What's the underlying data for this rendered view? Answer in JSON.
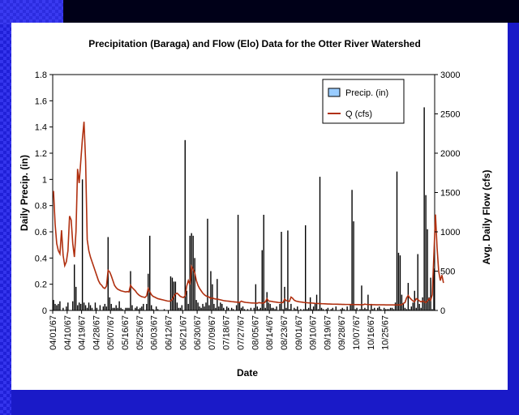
{
  "chart_data": {
    "type": "bar+line",
    "title": "Precipitation (Baraga) and Flow (Elo) Data for the Otter River Watershed",
    "xlabel": "Date",
    "ylabel_left": "Daily Precip. (in)",
    "ylabel_right": "Avg. Daily Flow (cfs)",
    "ylim_left": [
      0,
      1.8
    ],
    "ylim_right": [
      0,
      3000
    ],
    "yticks_left": [
      "0",
      "0.2",
      "0.4",
      "0.6",
      "0.8",
      "1",
      "1.2",
      "1.4",
      "1.6",
      "1.8"
    ],
    "yticks_right": [
      "0",
      "500",
      "1000",
      "1500",
      "2000",
      "2500",
      "3000"
    ],
    "x_tick_labels": [
      "04/01/67",
      "04/10/67",
      "04/19/67",
      "04/28/67",
      "05/07/67",
      "05/16/67",
      "05/25/67",
      "06/03/67",
      "06/12/67",
      "06/21/67",
      "06/30/67",
      "07/09/67",
      "07/18/67",
      "07/27/67",
      "08/05/67",
      "08/14/67",
      "08/23/67",
      "09/01/67",
      "09/10/67",
      "09/19/67",
      "09/28/67",
      "10/07/67",
      "10/16/67",
      "10/25/67"
    ],
    "legend_position": "top-right",
    "series": [
      {
        "name": "Precip. (in)",
        "kind": "bar",
        "axis": "left",
        "color": "#000000",
        "legend_color": "#99ccff",
        "values": [
          0.08,
          0.05,
          0.04,
          0.05,
          0.07,
          0,
          0.02,
          0,
          0.03,
          0.06,
          0,
          0,
          0.07,
          0.35,
          0.18,
          0.04,
          0.06,
          0.05,
          1.0,
          0.06,
          0.04,
          0.02,
          0.06,
          0.04,
          0.02,
          0,
          0.06,
          0.02,
          0,
          0.04,
          0,
          0.03,
          0.05,
          0.03,
          0.56,
          0.1,
          0.05,
          0.02,
          0.02,
          0.04,
          0.02,
          0.07,
          0.02,
          0.01,
          0,
          0.02,
          0.02,
          0.02,
          0.3,
          0.04,
          0,
          0.02,
          0.03,
          0.01,
          0.02,
          0.03,
          0.05,
          0,
          0.05,
          0.28,
          0.57,
          0.04,
          0.01,
          0,
          0.03,
          0.01,
          0,
          0,
          0,
          0.01,
          0,
          0,
          0,
          0.26,
          0.25,
          0.22,
          0.22,
          0.06,
          0.02,
          0.02,
          0.04,
          0,
          1.3,
          0.15,
          0.05,
          0.57,
          0.59,
          0.57,
          0.4,
          0.08,
          0.06,
          0.03,
          0.02,
          0.05,
          0.03,
          0.06,
          0.7,
          0.04,
          0.3,
          0.2,
          0.05,
          0.02,
          0.24,
          0.03,
          0.06,
          0.05,
          0.02,
          0,
          0.03,
          0.02,
          0,
          0.02,
          0.01,
          0,
          0.04,
          0.73,
          0.06,
          0.02,
          0.03,
          0.01,
          0,
          0.01,
          0,
          0.02,
          0,
          0.02,
          0.2,
          0.03,
          0.01,
          0.02,
          0.46,
          0.73,
          0.02,
          0.14,
          0.06,
          0.05,
          0.02,
          0.02,
          0.01,
          0.03,
          0,
          0.05,
          0.6,
          0.01,
          0.18,
          0.02,
          0.61,
          0.01,
          0.05,
          0,
          0.02,
          0.01,
          0.03,
          0,
          0.01,
          0,
          0.01,
          0.65,
          0.01,
          0.02,
          0.1,
          0.01,
          0.03,
          0.05,
          0.12,
          0.01,
          1.02,
          0.02,
          0.01,
          0,
          0.01,
          0.02,
          0,
          0.01,
          0.02,
          0,
          0.03,
          0,
          0,
          0.01,
          0.02,
          0.01,
          0,
          0.03,
          0,
          0.04,
          0.92,
          0.68,
          0.01,
          0.02,
          0,
          0.01,
          0.19,
          0.01,
          0.02,
          0.01,
          0.12,
          0,
          0.05,
          0.01,
          0.02,
          0,
          0.02,
          0.03,
          0.01,
          0,
          0.02,
          0.01,
          0.01,
          0.01,
          0.02,
          0.02,
          0.01,
          0.06,
          1.06,
          0.44,
          0.42,
          0.12,
          0.05,
          0.02,
          0.01,
          0.21,
          0.01,
          0.03,
          0.06,
          0.15,
          0.02,
          0.43,
          0.05,
          0.02,
          0.1,
          1.55,
          0.88,
          0.62,
          0.1,
          0.25,
          0.01,
          0.32
        ]
      },
      {
        "name": "Q (cfs)",
        "kind": "line",
        "axis": "right",
        "color": "#b03010",
        "values": [
          1520,
          1100,
          850,
          760,
          720,
          1020,
          700,
          570,
          620,
          760,
          1200,
          1150,
          850,
          680,
          1000,
          1800,
          1620,
          1900,
          2180,
          2400,
          1900,
          900,
          760,
          680,
          620,
          560,
          500,
          440,
          380,
          340,
          320,
          290,
          280,
          310,
          510,
          490,
          440,
          380,
          320,
          290,
          270,
          260,
          250,
          245,
          240,
          235,
          240,
          235,
          320,
          290,
          270,
          250,
          220,
          200,
          185,
          175,
          170,
          165,
          185,
          280,
          240,
          200,
          180,
          170,
          160,
          150,
          145,
          140,
          135,
          130,
          125,
          120,
          118,
          120,
          140,
          180,
          210,
          220,
          200,
          180,
          170,
          165,
          185,
          310,
          380,
          330,
          560,
          520,
          480,
          380,
          320,
          280,
          250,
          220,
          200,
          185,
          175,
          170,
          150,
          160,
          150,
          145,
          145,
          140,
          135,
          130,
          125,
          122,
          120,
          118,
          115,
          112,
          110,
          108,
          106,
          104,
          102,
          118,
          110,
          105,
          102,
          100,
          98,
          96,
          95,
          94,
          93,
          92,
          100,
          96,
          95,
          94,
          110,
          150,
          120,
          118,
          115,
          110,
          108,
          105,
          102,
          100,
          100,
          100,
          145,
          125,
          120,
          115,
          170,
          155,
          130,
          120,
          115,
          110,
          108,
          105,
          102,
          100,
          98,
          96,
          95,
          94,
          92,
          90,
          89,
          88,
          87,
          86,
          85,
          84,
          83,
          82,
          82,
          81,
          80,
          80,
          79,
          79,
          78,
          78,
          77,
          77,
          76,
          76,
          76,
          75,
          75,
          75,
          74,
          74,
          74,
          73,
          73,
          73,
          80,
          76,
          75,
          74,
          74,
          73,
          73,
          72,
          72,
          72,
          71,
          71,
          71,
          70,
          70,
          70,
          70,
          70,
          70,
          70,
          70,
          70,
          71,
          72,
          90,
          100,
          160,
          190,
          160,
          140,
          120,
          110,
          150,
          140,
          120,
          110,
          120,
          110,
          100,
          120,
          150,
          130,
          200,
          700,
          1220,
          800,
          500,
          380,
          450,
          350
        ]
      }
    ]
  }
}
